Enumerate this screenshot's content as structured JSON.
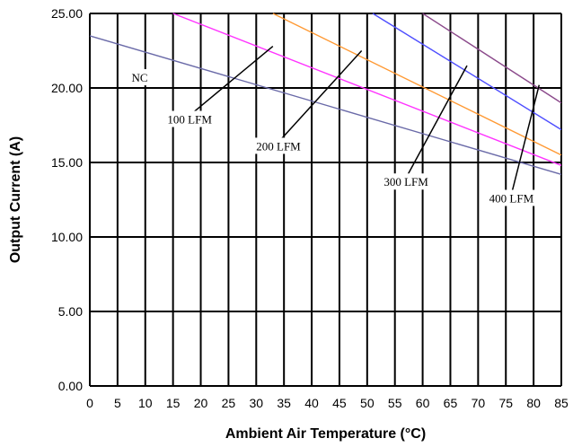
{
  "chart_data": {
    "type": "line",
    "xlabel": "Ambient Air Temperature (°C)",
    "ylabel": "Output Current (A)",
    "xlim": [
      0,
      85
    ],
    "ylim": [
      0,
      25
    ],
    "x_ticks": [
      "0",
      "5",
      "10",
      "15",
      "20",
      "25",
      "30",
      "35",
      "40",
      "45",
      "50",
      "55",
      "60",
      "65",
      "70",
      "75",
      "80",
      "85"
    ],
    "y_ticks": [
      "0.00",
      "5.00",
      "10.00",
      "15.00",
      "20.00",
      "25.00"
    ],
    "grid": true,
    "series": [
      {
        "name": "NC",
        "color": "#6a6aa8",
        "x": [
          0,
          85
        ],
        "y": [
          23.5,
          14.2
        ]
      },
      {
        "name": "100 LFM",
        "color": "#ff33ff",
        "x": [
          15,
          85
        ],
        "y": [
          25.0,
          14.8
        ]
      },
      {
        "name": "200 LFM",
        "color": "#ff9933",
        "x": [
          33,
          85
        ],
        "y": [
          25.0,
          15.5
        ]
      },
      {
        "name": "300 LFM",
        "color": "#4d4dff",
        "x": [
          51,
          85
        ],
        "y": [
          25.0,
          17.2
        ]
      },
      {
        "name": "400 LFM",
        "color": "#8b4a8b",
        "x": [
          60,
          85
        ],
        "y": [
          25.0,
          19.0
        ]
      }
    ],
    "annotations": [
      {
        "text": "NC",
        "box": [
          0.135,
          0.088
        ],
        "arrow": null
      },
      {
        "text": "100 LFM",
        "box": [
          0.195,
          0.082
        ],
        "arrow": [
          [
            0.232,
            0.092
          ],
          [
            0.31,
            0.22
          ]
        ]
      },
      {
        "text": "200 LFM",
        "box": [
          0.295,
          0.075
        ],
        "arrow": [
          [
            0.342,
            0.084
          ],
          [
            0.462,
            0.218
          ]
        ]
      },
      {
        "text": "300 LFM",
        "box": [
          0.418,
          0.07
        ],
        "arrow": [
          [
            0.438,
            0.075
          ],
          [
            0.652,
            0.212
          ]
        ]
      },
      {
        "text": "400 LFM",
        "box": [
          0.52,
          0.063
        ],
        "arrow": [
          [
            0.556,
            0.077
          ],
          [
            0.82,
            0.198
          ]
        ]
      }
    ]
  }
}
